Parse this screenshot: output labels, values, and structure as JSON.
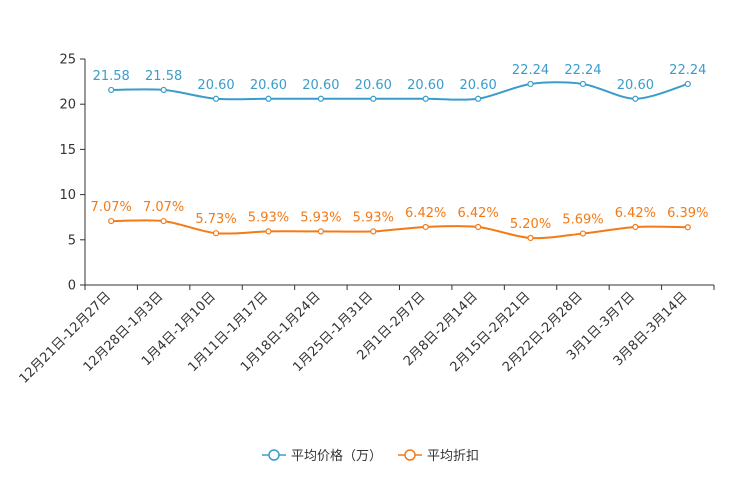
{
  "chart_data": {
    "type": "line",
    "title": "",
    "xlabel": "",
    "ylabel": "",
    "ylim": [
      0,
      25
    ],
    "yticks": [
      0,
      5,
      10,
      15,
      20,
      25
    ],
    "grid": false,
    "legend_position": "bottom-center",
    "categories": [
      "12月21日-12月27日",
      "12月28日-1月3日",
      "1月4日-1月10日",
      "1月11日-1月17日",
      "1月18日-1月24日",
      "1月25日-1月31日",
      "2月1日-2月7日",
      "2月8日-2月14日",
      "2月15日-2月21日",
      "2月22日-2月28日",
      "3月1日-3月7日",
      "3月8日-3月14日"
    ],
    "series": [
      {
        "name": "平均价格（万）",
        "color": "#3b9ccc",
        "values": [
          21.58,
          21.58,
          20.6,
          20.6,
          20.6,
          20.6,
          20.6,
          20.6,
          22.24,
          22.24,
          20.6,
          22.24
        ],
        "labels": [
          "21.58",
          "21.58",
          "20.60",
          "20.60",
          "20.60",
          "20.60",
          "20.60",
          "20.60",
          "22.24",
          "22.24",
          "20.60",
          "22.24"
        ]
      },
      {
        "name": "平均折扣",
        "color": "#f47a16",
        "values": [
          7.07,
          7.07,
          5.73,
          5.93,
          5.93,
          5.93,
          6.42,
          6.42,
          5.2,
          5.69,
          6.42,
          6.39
        ],
        "labels": [
          "7.07%",
          "7.07%",
          "5.73%",
          "5.93%",
          "5.93%",
          "5.93%",
          "6.42%",
          "6.42%",
          "5.20%",
          "5.69%",
          "6.42%",
          "6.39%"
        ]
      }
    ]
  }
}
